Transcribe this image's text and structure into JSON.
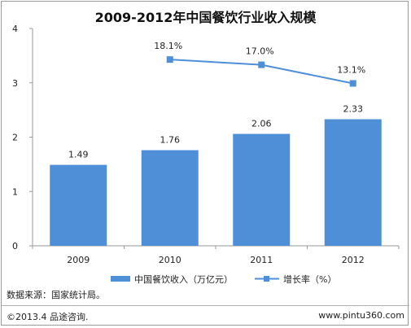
{
  "chart_data": {
    "type": "bar",
    "title": "2009-2012年中国餐饮行业收入规模",
    "categories": [
      "2009",
      "2010",
      "2011",
      "2012"
    ],
    "ylim": [
      0,
      4
    ],
    "yticks": [
      "0",
      "1",
      "2",
      "3",
      "4"
    ],
    "series": [
      {
        "name": "中国餐饮收入（万亿元）",
        "type": "bar",
        "values": [
          1.49,
          1.76,
          2.06,
          2.33
        ],
        "labels": [
          "1.49",
          "1.76",
          "2.06",
          "2.33"
        ],
        "color": "#4f8fd8"
      },
      {
        "name": "增长率（%）",
        "type": "line",
        "x": [
          "2010",
          "2011",
          "2012"
        ],
        "values": [
          18.1,
          17.0,
          13.1
        ],
        "labels": [
          "18.1%",
          "17.0%",
          "13.1%"
        ],
        "color": "#4f8fd8"
      }
    ],
    "grid": false,
    "legend": "bottom"
  },
  "footer": {
    "source": "数据来源：国家统计局。",
    "copyright": "©2013.4 品途咨询.",
    "url": "www.pintu360.com"
  }
}
